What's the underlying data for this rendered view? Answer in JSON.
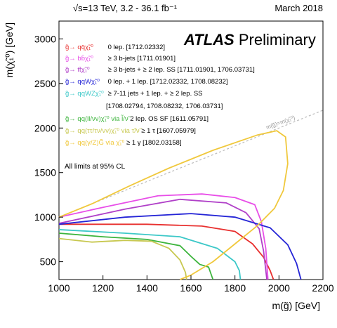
{
  "header": {
    "energy_lumi": "√s=13 TeV, 3.2 - 36.1 fb⁻¹",
    "date": "March 2018"
  },
  "atlas": {
    "brand": "ATLAS",
    "tag": "Preliminary"
  },
  "cl_note": "All limits at 95% CL",
  "diagonal_label": "m(g̃)=m(χ̃₁⁰)",
  "chart_data": {
    "type": "line",
    "xlabel": "m(g̃) [GeV]",
    "ylabel": "m(χ̃₁⁰) [GeV]",
    "xlim": [
      1000,
      2200
    ],
    "ylim": [
      300,
      3200
    ],
    "xticks": [
      1000,
      1200,
      1400,
      1600,
      1800,
      2000,
      2200
    ],
    "yticks": [
      500,
      1000,
      1500,
      2000,
      2500,
      3000
    ],
    "grid": false,
    "legend_position": "top-left",
    "series": [
      {
        "name": "g̃→ qq̄χ̃₁⁰",
        "desc": "0 lep. [1712.02332]",
        "color": "#e8302f",
        "x": [
          1000,
          1400,
          1650,
          1800,
          1880,
          1930,
          1960,
          1975
        ],
        "y": [
          920,
          920,
          900,
          840,
          700,
          550,
          400,
          300
        ]
      },
      {
        "name": "g̃→ bb̄χ̃₁⁰",
        "desc": "≥ 3 b-jets [1711.01901]",
        "color": "#e84ee8",
        "x": [
          1000,
          1200,
          1450,
          1650,
          1800,
          1890,
          1920,
          1940,
          1950
        ],
        "y": [
          1000,
          1110,
          1240,
          1260,
          1220,
          1140,
          950,
          650,
          300
        ]
      },
      {
        "name": "g̃→ tt̄χ̃₁⁰",
        "desc": "≥ 3 b-jets + ≥ 2 lep. SS [1711.01901, 1706.03731]",
        "color": "#b040c8",
        "x": [
          1000,
          1300,
          1550,
          1760,
          1850,
          1910,
          1930,
          1945
        ],
        "y": [
          930,
          1090,
          1200,
          1160,
          1050,
          870,
          620,
          300
        ]
      },
      {
        "name": "g̃→ qqWχ̃₁⁰",
        "desc": "0 lep. + 1 lep. [1712.02332, 1708.08232]",
        "color": "#2424d6",
        "x": [
          1000,
          1300,
          1600,
          1800,
          1960,
          2040,
          2080,
          2100
        ],
        "y": [
          920,
          1000,
          1040,
          1000,
          880,
          690,
          480,
          300
        ]
      },
      {
        "name": "g̃→ qqWZχ̃₁⁰",
        "desc": "≥ 7-11 jets + 1 lep. + ≥ 2 lep. SS [1708.02794, 1708.08232, 1706.03731]",
        "color": "#3cc8c8",
        "x": [
          1000,
          1300,
          1550,
          1720,
          1800,
          1820,
          1825
        ],
        "y": [
          860,
          820,
          780,
          650,
          500,
          400,
          300
        ]
      },
      {
        "name": "g̃→ qq(ll/νν)χ̃₁⁰ via l̃/ν̃",
        "desc": "2 lep. OS SF [1611.05791]",
        "color": "#3cb43c",
        "x": [
          1000,
          1200,
          1400,
          1550,
          1600,
          1640,
          1680,
          1700
        ],
        "y": [
          820,
          780,
          750,
          680,
          560,
          470,
          440,
          300
        ]
      },
      {
        "name": "g̃→ qq(ττ/τν/νν)χ̃₁⁰ via τ̃/ν̃",
        "desc": "≥ 1 τ [1607.05979]",
        "color": "#c8c850",
        "x": [
          1000,
          1150,
          1300,
          1420,
          1500,
          1550,
          1575,
          1580
        ],
        "y": [
          760,
          720,
          740,
          730,
          650,
          520,
          380,
          300
        ]
      },
      {
        "name": "g̃→ qq(γ/Z)G̃ via χ̃₁⁰",
        "desc": "≥ 1 γ [1802.03158]",
        "color": "#f0c83c",
        "x": [
          1000,
          1150,
          1320,
          1500,
          1700,
          1900,
          1990,
          2030,
          2040,
          2020,
          1980,
          1900,
          1800,
          1700,
          1600,
          1550
        ],
        "y": [
          1000,
          1150,
          1350,
          1550,
          1750,
          1920,
          1970,
          1900,
          1600,
          1300,
          1100,
          900,
          700,
          500,
          350,
          300
        ]
      }
    ]
  },
  "legend_continuation": "[1708.02794, 1708.08232, 1706.03731]"
}
